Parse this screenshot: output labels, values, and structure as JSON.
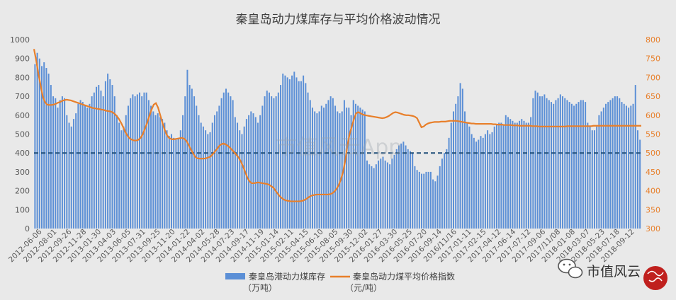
{
  "chart_data": {
    "type": "bar+line",
    "title": "秦皇岛动力煤库存与平均价格波动情况",
    "watermark": "市值风云App",
    "brand": {
      "name": "市值风云",
      "seal_text": "市值风云"
    },
    "grid": false,
    "legend_position": "bottom",
    "colors": {
      "bar": "#5b8fd6",
      "line": "#e87f2a",
      "reference": "#1f4e79",
      "left_axis": "#595959",
      "right_axis": "#e87f2a"
    },
    "y_left": {
      "min": 0,
      "max": 1000,
      "step": 100,
      "ticks": [
        "0",
        "100",
        "200",
        "300",
        "400",
        "500",
        "600",
        "700",
        "800",
        "900",
        "1000"
      ]
    },
    "y_right": {
      "min": 300,
      "max": 800,
      "step": 50,
      "ticks": [
        "300",
        "350",
        "400",
        "450",
        "500",
        "550",
        "600",
        "650",
        "700",
        "750",
        "800"
      ]
    },
    "reference_line": {
      "axis": "left",
      "value": 400,
      "style": "dashed"
    },
    "x_tick_labels": [
      "2012-06-06",
      "2012-08-01",
      "2012-09-26",
      "2012-11-28",
      "2013-01-30",
      "2013-04-03",
      "2013-06-05",
      "2013-07-31",
      "2013-09-25",
      "2013-11-20",
      "2014-01-22",
      "2014-04-02",
      "2014-05-28",
      "2014-07-23",
      "2014-09-17",
      "2014-11-19",
      "2015-01-14",
      "2015-02-11",
      "2015-04-15",
      "2015-06-10",
      "2015-08-05",
      "2015-09-30",
      "2015-12-02",
      "2016-01-27",
      "2016-03-30",
      "2016-05-25",
      "2016-07-20",
      "2016-09-14",
      "2016/11/16",
      "2017-01-11",
      "2017-02-15",
      "2017-04-12",
      "2017-06-14",
      "2017-07-12",
      "2017-09-06",
      "2017/11/08",
      "2018-01-08",
      "2018-03-07",
      "2018-05-23",
      "2018-07-18",
      "2018-09-12"
    ],
    "series": [
      {
        "name": "秦皇岛港动力煤库存（万吨）",
        "legend_line1": "秦皇岛港动力煤库存",
        "legend_line2": "（万吨）",
        "type": "bar",
        "axis": "left",
        "values": [
          870,
          930,
          900,
          860,
          880,
          850,
          820,
          760,
          700,
          690,
          640,
          680,
          700,
          690,
          600,
          560,
          540,
          580,
          610,
          660,
          680,
          670,
          650,
          640,
          660,
          700,
          720,
          750,
          760,
          730,
          700,
          780,
          820,
          790,
          760,
          700,
          600,
          560,
          520,
          540,
          600,
          650,
          690,
          710,
          700,
          710,
          720,
          700,
          720,
          720,
          680,
          650,
          620,
          600,
          610,
          590,
          580,
          560,
          520,
          490,
          500,
          480,
          470,
          480,
          520,
          600,
          700,
          840,
          760,
          740,
          700,
          650,
          600,
          560,
          540,
          520,
          500,
          510,
          560,
          600,
          620,
          650,
          690,
          720,
          740,
          720,
          700,
          680,
          590,
          560,
          520,
          500,
          540,
          580,
          600,
          620,
          610,
          590,
          560,
          600,
          650,
          700,
          730,
          720,
          700,
          690,
          700,
          720,
          760,
          820,
          810,
          800,
          790,
          810,
          830,
          800,
          780,
          780,
          810,
          770,
          720,
          680,
          640,
          620,
          610,
          620,
          650,
          640,
          660,
          680,
          700,
          690,
          650,
          620,
          610,
          620,
          680,
          640,
          640,
          600,
          680,
          660,
          650,
          640,
          630,
          620,
          360,
          340,
          330,
          320,
          340,
          360,
          370,
          380,
          360,
          350,
          340,
          370,
          390,
          420,
          440,
          450,
          460,
          440,
          420,
          410,
          400,
          330,
          310,
          300,
          290,
          290,
          300,
          300,
          300,
          260,
          250,
          280,
          330,
          370,
          400,
          420,
          480,
          560,
          620,
          660,
          700,
          770,
          740,
          620,
          560,
          540,
          500,
          480,
          460,
          470,
          490,
          480,
          500,
          520,
          500,
          510,
          540,
          550,
          560,
          560,
          550,
          600,
          590,
          580,
          570,
          560,
          560,
          570,
          580,
          570,
          560,
          560,
          590,
          690,
          730,
          720,
          700,
          700,
          710,
          690,
          680,
          670,
          660,
          680,
          690,
          710,
          700,
          690,
          680,
          670,
          660,
          650,
          660,
          670,
          680,
          680,
          670,
          560,
          540,
          520,
          520,
          540,
          600,
          620,
          640,
          660,
          670,
          680,
          690,
          700,
          700,
          690,
          670,
          660,
          650,
          640,
          650,
          660,
          760,
          520,
          470
        ]
      },
      {
        "name": "秦皇岛动力煤平均价格指数（元/吨）",
        "legend_line1": "秦皇岛动力煤平均价格指数",
        "legend_line2": "（元/吨）",
        "type": "line",
        "axis": "right",
        "values": [
          775,
          745,
          710,
          680,
          650,
          635,
          628,
          627,
          627,
          628,
          630,
          633,
          635,
          638,
          640,
          641,
          640,
          639,
          637,
          635,
          633,
          631,
          629,
          627,
          625,
          623,
          621,
          619,
          618,
          617,
          616,
          615,
          614,
          612,
          611,
          610,
          608,
          604,
          598,
          590,
          580,
          568,
          555,
          545,
          538,
          535,
          533,
          533,
          535,
          540,
          550,
          565,
          580,
          598,
          615,
          628,
          632,
          620,
          600,
          580,
          562,
          548,
          540,
          537,
          536,
          537,
          538,
          539,
          540,
          538,
          532,
          522,
          510,
          500,
          490,
          486,
          485,
          485,
          485,
          486,
          488,
          490,
          496,
          503,
          510,
          518,
          523,
          525,
          523,
          519,
          514,
          508,
          502,
          495,
          488,
          478,
          465,
          450,
          435,
          425,
          420,
          420,
          421,
          422,
          421,
          420,
          419,
          418,
          416,
          412,
          408,
          400,
          392,
          385,
          380,
          376,
          374,
          373,
          372,
          372,
          372,
          372,
          372,
          373,
          375,
          378,
          382,
          386,
          388,
          389,
          390,
          390,
          390,
          390,
          390,
          390,
          391,
          393,
          398,
          405,
          415,
          430,
          450,
          480,
          520,
          550,
          570,
          590,
          605,
          608,
          605,
          602,
          600,
          599,
          598,
          597,
          596,
          595,
          594,
          593,
          592,
          593,
          595,
          598,
          602,
          606,
          608,
          607,
          605,
          603,
          601,
          600,
          600,
          599,
          598,
          596,
          592,
          580,
          568,
          570,
          575,
          578,
          580,
          581,
          582,
          582,
          582,
          583,
          583,
          583,
          584,
          585,
          585,
          585,
          585,
          584,
          583,
          582,
          581,
          580,
          579,
          578,
          578,
          577,
          577,
          577,
          577,
          577,
          577,
          577,
          577,
          576,
          576,
          575,
          575,
          575,
          574,
          574,
          574,
          574,
          573,
          573,
          573,
          572,
          572,
          572,
          572,
          572,
          572,
          571,
          571,
          571,
          570,
          570,
          570,
          570,
          570,
          570,
          570,
          570,
          570,
          570,
          570,
          570,
          570,
          571,
          571,
          571,
          571,
          571,
          571,
          571,
          571,
          571,
          571,
          571,
          571,
          572,
          572,
          572,
          572,
          572,
          572,
          572,
          572,
          572,
          572,
          572,
          572,
          572,
          572,
          572,
          572,
          572,
          572,
          572,
          572,
          572,
          572,
          572
        ]
      }
    ]
  }
}
